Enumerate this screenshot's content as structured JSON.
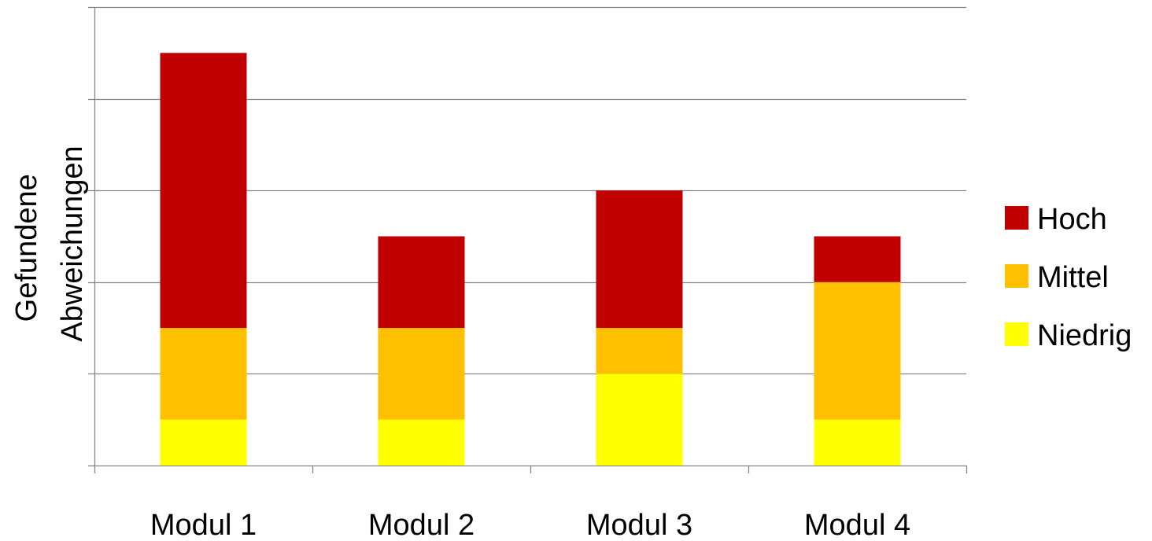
{
  "chart_data": {
    "type": "bar",
    "stacked": true,
    "categories": [
      "Modul 1",
      "Modul 2",
      "Modul 3",
      "Modul 4"
    ],
    "series": [
      {
        "name": "Niedrig",
        "color": "#ffff00",
        "values": [
          1,
          1,
          2,
          1
        ]
      },
      {
        "name": "Mittel",
        "color": "#ffc000",
        "values": [
          2,
          2,
          1,
          3
        ]
      },
      {
        "name": "Hoch",
        "color": "#c00000",
        "values": [
          6,
          2,
          3,
          1
        ]
      }
    ],
    "title": "",
    "xlabel": "",
    "ylabel": [
      "Gefundene",
      "Abweichungen"
    ],
    "ylim": [
      0,
      10
    ],
    "grid": true,
    "legend": "right",
    "legend_order": [
      "Hoch",
      "Mittel",
      "Niedrig"
    ]
  }
}
